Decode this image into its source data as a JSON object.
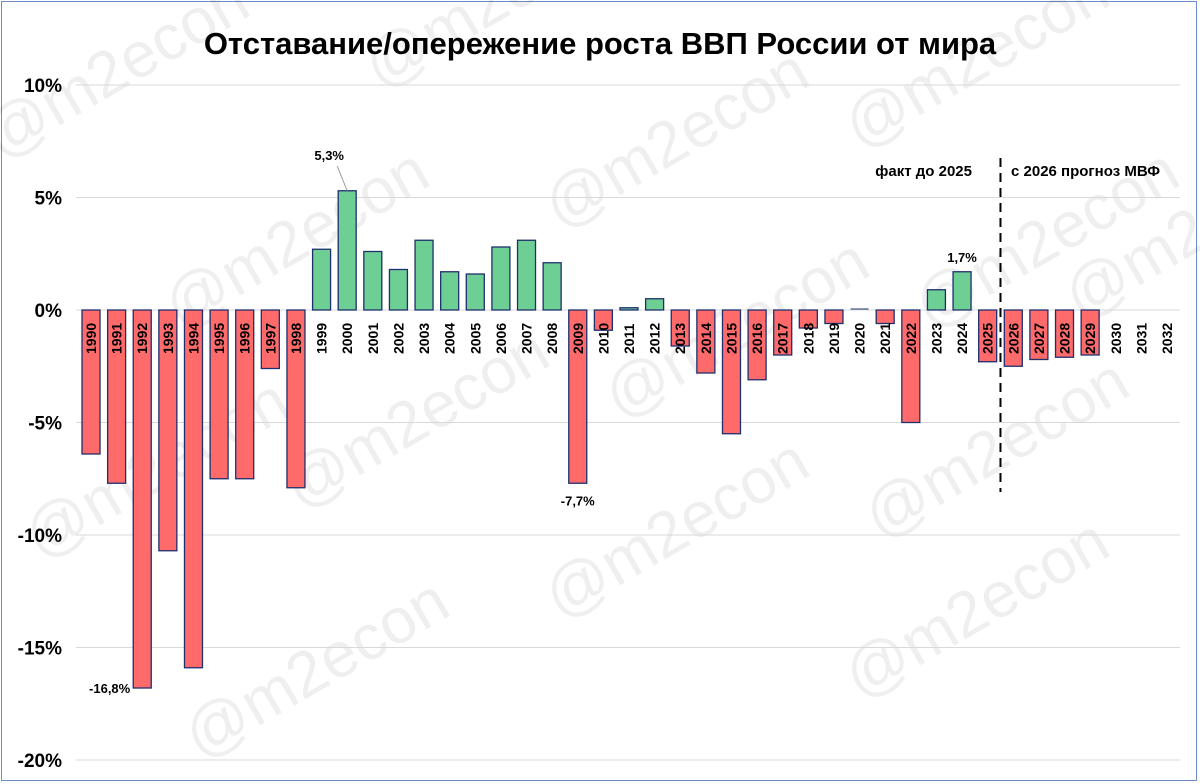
{
  "chart_data": {
    "type": "bar",
    "title": "Отставание/опережение роста ВВП России от мира",
    "xlabel": "",
    "ylabel": "",
    "ylim": [
      -20,
      10
    ],
    "yticks": [
      10,
      5,
      0,
      -5,
      -10,
      -15,
      -20
    ],
    "ytick_labels": [
      "10%",
      "5%",
      "0%",
      "-5%",
      "-10%",
      "-15%",
      "-20%"
    ],
    "grid": true,
    "categories": [
      "1990",
      "1991",
      "1992",
      "1993",
      "1994",
      "1995",
      "1996",
      "1997",
      "1998",
      "1999",
      "2000",
      "2001",
      "2002",
      "2003",
      "2004",
      "2005",
      "2006",
      "2007",
      "2008",
      "2009",
      "2010",
      "2011",
      "2012",
      "2013",
      "2014",
      "2015",
      "2016",
      "2017",
      "2018",
      "2019",
      "2020",
      "2021",
      "2022",
      "2023",
      "2024",
      "2025",
      "2026",
      "2027",
      "2028",
      "2029",
      "2030",
      "2031",
      "2032"
    ],
    "values": [
      -6.4,
      -7.7,
      -16.8,
      -10.7,
      -15.9,
      -7.5,
      -7.5,
      -2.6,
      -7.9,
      2.7,
      5.3,
      2.6,
      1.8,
      3.1,
      1.7,
      1.6,
      2.8,
      3.1,
      2.1,
      -7.7,
      -0.9,
      0.1,
      0.5,
      -1.6,
      -2.8,
      -5.5,
      -3.1,
      -2.0,
      -0.8,
      -0.6,
      0.0,
      -0.6,
      -5.0,
      0.9,
      1.7,
      -2.3,
      -2.5,
      -2.2,
      -2.1,
      -2.0,
      null,
      null,
      null
    ],
    "data_labels": [
      {
        "category": "1992",
        "text": "-16,8%"
      },
      {
        "category": "2000",
        "text": "5,3%"
      },
      {
        "category": "2009",
        "text": "-7,7%"
      },
      {
        "category": "2024",
        "text": "1,7%"
      }
    ],
    "annotations": {
      "fact": "факт до 2025",
      "forecast": "с 2026 прогноз МВФ"
    },
    "divider_between": [
      "2025",
      "2026"
    ],
    "colors": {
      "positive": "#6dcf94",
      "negative": "#ff6b6b",
      "bar_border": "#1f2f6e",
      "grid": "#d9d9d9"
    },
    "watermark": "@m2econ"
  }
}
